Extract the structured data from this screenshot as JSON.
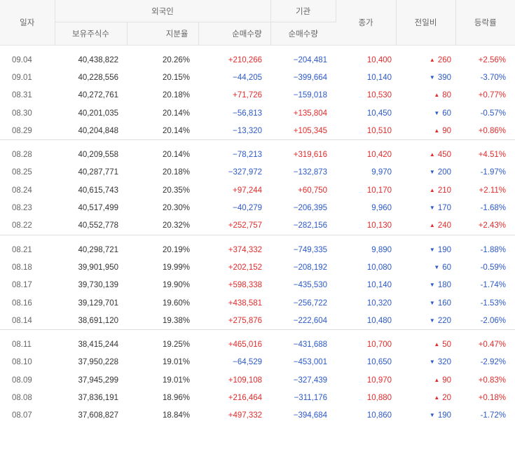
{
  "headers": {
    "date": "일자",
    "foreign": "외국인",
    "institution": "기관",
    "close": "종가",
    "change": "전일비",
    "rate": "등락률",
    "holdings": "보유주식수",
    "ratio": "지분율",
    "foreign_net": "순매수량",
    "inst_net": "순매수량"
  },
  "colors": {
    "up": "#e22b2b",
    "down": "#2c59c8",
    "header_bg": "#f7f7f7"
  },
  "groups": [
    {
      "rows": [
        {
          "date": "09.04",
          "holdings": "40,438,822",
          "ratio": "20.26%",
          "foreign": "+210,266",
          "foreign_dir": "up",
          "inst": "−204,481",
          "inst_dir": "down",
          "close": "10,400",
          "close_dir": "up",
          "change": "260",
          "change_dir": "up",
          "rate": "+2.56%",
          "rate_dir": "up"
        },
        {
          "date": "09.01",
          "holdings": "40,228,556",
          "ratio": "20.15%",
          "foreign": "−44,205",
          "foreign_dir": "down",
          "inst": "−399,664",
          "inst_dir": "down",
          "close": "10,140",
          "close_dir": "down",
          "change": "390",
          "change_dir": "down",
          "rate": "-3.70%",
          "rate_dir": "down"
        },
        {
          "date": "08.31",
          "holdings": "40,272,761",
          "ratio": "20.18%",
          "foreign": "+71,726",
          "foreign_dir": "up",
          "inst": "−159,018",
          "inst_dir": "down",
          "close": "10,530",
          "close_dir": "up",
          "change": "80",
          "change_dir": "up",
          "rate": "+0.77%",
          "rate_dir": "up"
        },
        {
          "date": "08.30",
          "holdings": "40,201,035",
          "ratio": "20.14%",
          "foreign": "−56,813",
          "foreign_dir": "down",
          "inst": "+135,804",
          "inst_dir": "up",
          "close": "10,450",
          "close_dir": "down",
          "change": "60",
          "change_dir": "down",
          "rate": "-0.57%",
          "rate_dir": "down"
        },
        {
          "date": "08.29",
          "holdings": "40,204,848",
          "ratio": "20.14%",
          "foreign": "−13,320",
          "foreign_dir": "down",
          "inst": "+105,345",
          "inst_dir": "up",
          "close": "10,510",
          "close_dir": "up",
          "change": "90",
          "change_dir": "up",
          "rate": "+0.86%",
          "rate_dir": "up"
        }
      ]
    },
    {
      "rows": [
        {
          "date": "08.28",
          "holdings": "40,209,558",
          "ratio": "20.14%",
          "foreign": "−78,213",
          "foreign_dir": "down",
          "inst": "+319,616",
          "inst_dir": "up",
          "close": "10,420",
          "close_dir": "up",
          "change": "450",
          "change_dir": "up",
          "rate": "+4.51%",
          "rate_dir": "up"
        },
        {
          "date": "08.25",
          "holdings": "40,287,771",
          "ratio": "20.18%",
          "foreign": "−327,972",
          "foreign_dir": "down",
          "inst": "−132,873",
          "inst_dir": "down",
          "close": "9,970",
          "close_dir": "down",
          "change": "200",
          "change_dir": "down",
          "rate": "-1.97%",
          "rate_dir": "down"
        },
        {
          "date": "08.24",
          "holdings": "40,615,743",
          "ratio": "20.35%",
          "foreign": "+97,244",
          "foreign_dir": "up",
          "inst": "+60,750",
          "inst_dir": "up",
          "close": "10,170",
          "close_dir": "up",
          "change": "210",
          "change_dir": "up",
          "rate": "+2.11%",
          "rate_dir": "up"
        },
        {
          "date": "08.23",
          "holdings": "40,517,499",
          "ratio": "20.30%",
          "foreign": "−40,279",
          "foreign_dir": "down",
          "inst": "−206,395",
          "inst_dir": "down",
          "close": "9,960",
          "close_dir": "down",
          "change": "170",
          "change_dir": "down",
          "rate": "-1.68%",
          "rate_dir": "down"
        },
        {
          "date": "08.22",
          "holdings": "40,552,778",
          "ratio": "20.32%",
          "foreign": "+252,757",
          "foreign_dir": "up",
          "inst": "−282,156",
          "inst_dir": "down",
          "close": "10,130",
          "close_dir": "up",
          "change": "240",
          "change_dir": "up",
          "rate": "+2.43%",
          "rate_dir": "up"
        }
      ]
    },
    {
      "rows": [
        {
          "date": "08.21",
          "holdings": "40,298,721",
          "ratio": "20.19%",
          "foreign": "+374,332",
          "foreign_dir": "up",
          "inst": "−749,335",
          "inst_dir": "down",
          "close": "9,890",
          "close_dir": "down",
          "change": "190",
          "change_dir": "down",
          "rate": "-1.88%",
          "rate_dir": "down"
        },
        {
          "date": "08.18",
          "holdings": "39,901,950",
          "ratio": "19.99%",
          "foreign": "+202,152",
          "foreign_dir": "up",
          "inst": "−208,192",
          "inst_dir": "down",
          "close": "10,080",
          "close_dir": "down",
          "change": "60",
          "change_dir": "down",
          "rate": "-0.59%",
          "rate_dir": "down"
        },
        {
          "date": "08.17",
          "holdings": "39,730,139",
          "ratio": "19.90%",
          "foreign": "+598,338",
          "foreign_dir": "up",
          "inst": "−435,530",
          "inst_dir": "down",
          "close": "10,140",
          "close_dir": "down",
          "change": "180",
          "change_dir": "down",
          "rate": "-1.74%",
          "rate_dir": "down"
        },
        {
          "date": "08.16",
          "holdings": "39,129,701",
          "ratio": "19.60%",
          "foreign": "+438,581",
          "foreign_dir": "up",
          "inst": "−256,722",
          "inst_dir": "down",
          "close": "10,320",
          "close_dir": "down",
          "change": "160",
          "change_dir": "down",
          "rate": "-1.53%",
          "rate_dir": "down"
        },
        {
          "date": "08.14",
          "holdings": "38,691,120",
          "ratio": "19.38%",
          "foreign": "+275,876",
          "foreign_dir": "up",
          "inst": "−222,604",
          "inst_dir": "down",
          "close": "10,480",
          "close_dir": "down",
          "change": "220",
          "change_dir": "down",
          "rate": "-2.06%",
          "rate_dir": "down"
        }
      ]
    },
    {
      "rows": [
        {
          "date": "08.11",
          "holdings": "38,415,244",
          "ratio": "19.25%",
          "foreign": "+465,016",
          "foreign_dir": "up",
          "inst": "−431,688",
          "inst_dir": "down",
          "close": "10,700",
          "close_dir": "up",
          "change": "50",
          "change_dir": "up",
          "rate": "+0.47%",
          "rate_dir": "up"
        },
        {
          "date": "08.10",
          "holdings": "37,950,228",
          "ratio": "19.01%",
          "foreign": "−64,529",
          "foreign_dir": "down",
          "inst": "−453,001",
          "inst_dir": "down",
          "close": "10,650",
          "close_dir": "down",
          "change": "320",
          "change_dir": "down",
          "rate": "-2.92%",
          "rate_dir": "down"
        },
        {
          "date": "08.09",
          "holdings": "37,945,299",
          "ratio": "19.01%",
          "foreign": "+109,108",
          "foreign_dir": "up",
          "inst": "−327,439",
          "inst_dir": "down",
          "close": "10,970",
          "close_dir": "up",
          "change": "90",
          "change_dir": "up",
          "rate": "+0.83%",
          "rate_dir": "up"
        },
        {
          "date": "08.08",
          "holdings": "37,836,191",
          "ratio": "18.96%",
          "foreign": "+216,464",
          "foreign_dir": "up",
          "inst": "−311,176",
          "inst_dir": "down",
          "close": "10,880",
          "close_dir": "up",
          "change": "20",
          "change_dir": "up",
          "rate": "+0.18%",
          "rate_dir": "up"
        },
        {
          "date": "08.07",
          "holdings": "37,608,827",
          "ratio": "18.84%",
          "foreign": "+497,332",
          "foreign_dir": "up",
          "inst": "−394,684",
          "inst_dir": "down",
          "close": "10,860",
          "close_dir": "down",
          "change": "190",
          "change_dir": "down",
          "rate": "-1.72%",
          "rate_dir": "down"
        }
      ]
    }
  ]
}
